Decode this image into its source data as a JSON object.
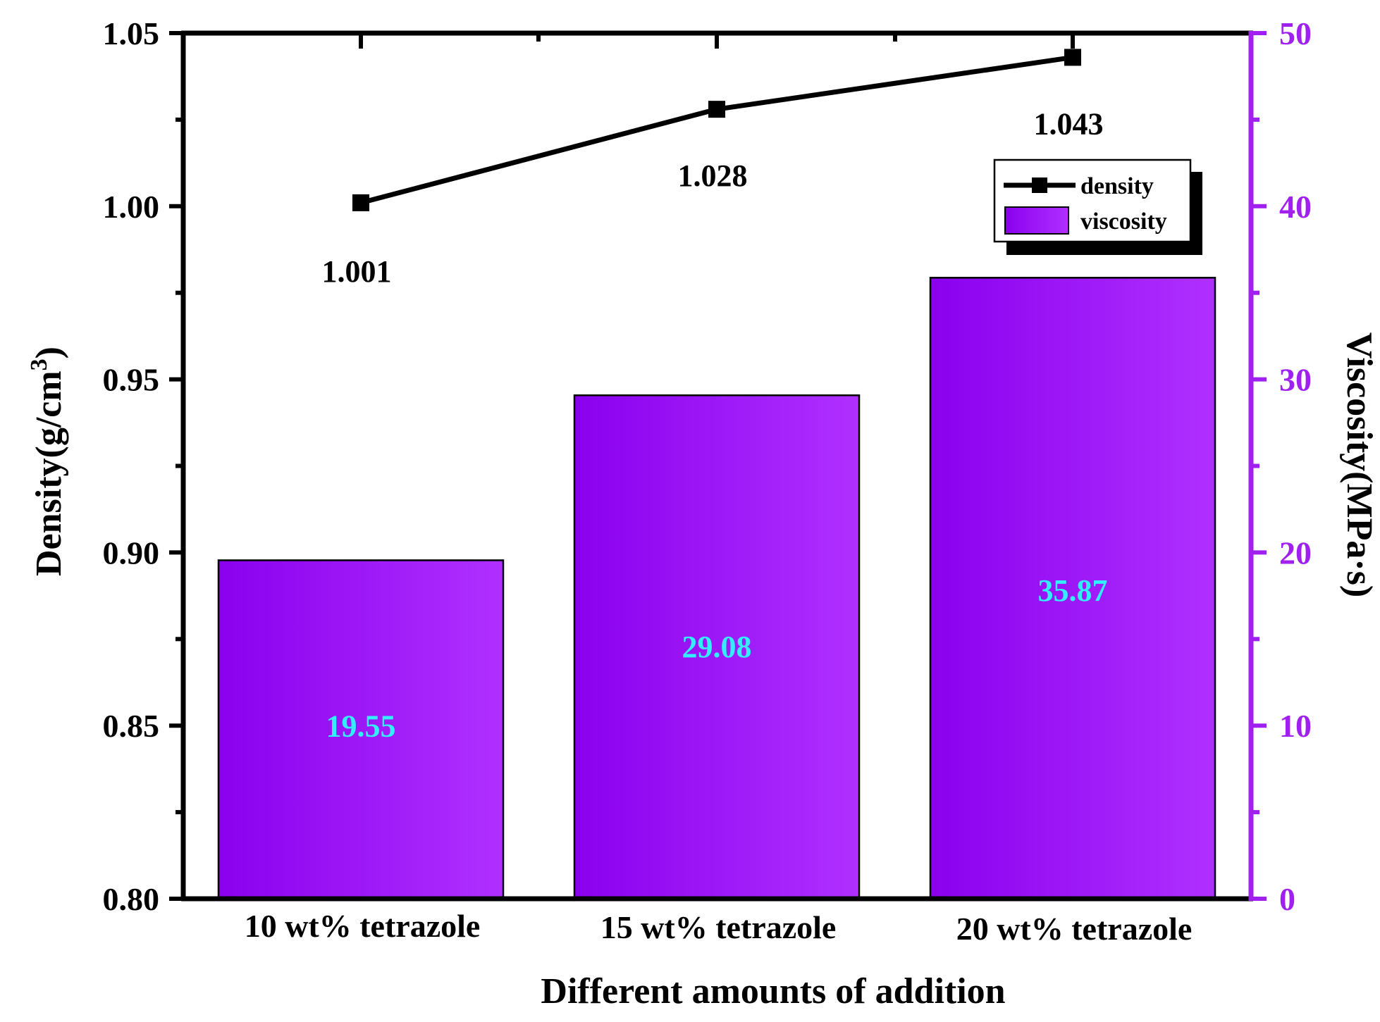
{
  "chart_data": {
    "type": "bar",
    "categories": [
      "10 wt% tetrazole",
      "15 wt% tetrazole",
      "20 wt% tetrazole"
    ],
    "series": [
      {
        "name": "viscosity",
        "chart": "bar",
        "axis": "right",
        "values": [
          19.55,
          29.08,
          35.87
        ],
        "labels": [
          "19.55",
          "29.08",
          "35.87"
        ]
      },
      {
        "name": "density",
        "chart": "line",
        "axis": "left",
        "values": [
          1.001,
          1.028,
          1.043
        ],
        "labels": [
          "1.001",
          "1.028",
          "1.043"
        ]
      }
    ],
    "xlabel": "Different amounts of addition",
    "ylabel_left": "Density(g/cm",
    "ylabel_left_sup": "3",
    "ylabel_left_close": ")",
    "ylabel_right": "Viscosity(MPa·s)",
    "y_left": {
      "lim": [
        0.8,
        1.05
      ],
      "ticks": [
        "0.80",
        "0.85",
        "0.90",
        "0.95",
        "1.00",
        "1.05"
      ]
    },
    "y_right": {
      "lim": [
        0,
        50
      ],
      "ticks": [
        "0",
        "10",
        "20",
        "30",
        "40",
        "50"
      ]
    },
    "legend": {
      "position": "top-right",
      "entries": [
        "density",
        "viscosity"
      ]
    },
    "grid": false
  },
  "colors": {
    "bar_fill": "#a020f0",
    "bar_gradient_light": "#b030ff",
    "bar_gradient_dark": "#8a00ee",
    "bar_label": "#33eeff",
    "line": "#000000",
    "right_axis": "#a020f0",
    "left_axis": "#000000"
  }
}
